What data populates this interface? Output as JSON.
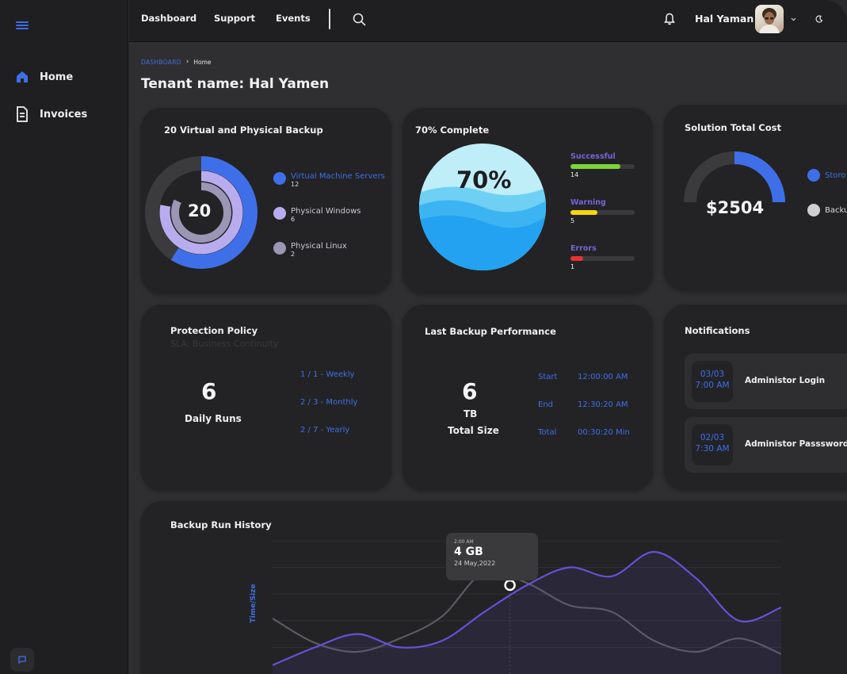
{
  "sidebar": {
    "menu_icon": "hamburger-icon",
    "items": [
      {
        "label": "Home",
        "icon": "home-icon"
      },
      {
        "label": "Invoices",
        "icon": "document-icon"
      }
    ],
    "chat_icon": "chat-icon"
  },
  "topbar": {
    "nav": [
      "Dashboard",
      "Support",
      "Events"
    ],
    "search_icon": "search-icon",
    "bell_icon": "bell-icon",
    "user_name": "Hal Yaman",
    "theme_icon": "moon-icon"
  },
  "breadcrumb": {
    "parent": "DASHBOARD",
    "current": "Home"
  },
  "page_title": "Tenant name: Hal Yamen",
  "backup_card": {
    "title": "20 Virtual and Physical Backup",
    "center_value": "20",
    "legend": [
      {
        "label": "Virtual Machine Servers",
        "value": "12",
        "color": "#3f6fe8"
      },
      {
        "label": "Physical Windows",
        "value": "6",
        "color": "#b9acee"
      },
      {
        "label": "Physical Linux",
        "value": "2",
        "color": "#9a96b4"
      }
    ]
  },
  "complete_card": {
    "title": "70% Complete",
    "percent_label": "70%",
    "percent": 70,
    "bars": [
      {
        "label": "Successful",
        "value": "14",
        "fraction": 0.78,
        "color": "#7fd33a"
      },
      {
        "label": "Warning",
        "value": "5",
        "fraction": 0.42,
        "color": "#f5d615"
      },
      {
        "label": "Errors",
        "value": "1",
        "fraction": 0.2,
        "color": "#e8322f"
      }
    ]
  },
  "cost_card": {
    "title": "Solution Total Cost",
    "amount": "$2504",
    "gauge_fraction": 0.5,
    "legend": [
      {
        "label": "Storo",
        "color": "#3f6fe8"
      },
      {
        "label": "Backu",
        "color": "#d0d0d0"
      }
    ]
  },
  "policy_card": {
    "title": "Protection Policy",
    "subtitle": "SLA: Business Continuity",
    "runs": "6",
    "runs_label": "Daily Runs",
    "schedules": [
      "1 / 1 - Weekly",
      "2 / 3 - Monthly",
      "2 / 7 - Yearly"
    ]
  },
  "performance_card": {
    "title": "Last Backup Performance",
    "size": "6",
    "unit": "TB",
    "size_label": "Total Size",
    "rows": [
      {
        "label": "Start",
        "value": "12:00:00 AM"
      },
      {
        "label": "End",
        "value": "12:30:20 AM"
      },
      {
        "label": "Total",
        "value": "00:30:20 Min"
      }
    ]
  },
  "notifications_card": {
    "title": "Notifications",
    "items": [
      {
        "date": "03/03",
        "time": "7:00 AM",
        "text": "Administor Login"
      },
      {
        "date": "02/03",
        "time": "7:30 AM",
        "text": "Administor Passsword Ch"
      }
    ]
  },
  "history_card": {
    "title": "Backup Run History",
    "ylabel": "Time/Size",
    "tooltip": {
      "time": "2:00 AM",
      "value": "4 GB",
      "date": "24 May,2022"
    }
  },
  "chart_data": {
    "type": "area",
    "title": "Backup Run History",
    "xlabel": "",
    "ylabel": "Time/Size",
    "ylim": [
      0,
      6
    ],
    "x": [
      0,
      1,
      2,
      3,
      4,
      5,
      6,
      7,
      8,
      9,
      10,
      11,
      12
    ],
    "series": [
      {
        "name": "",
        "color": "#6a4fd6",
        "values": [
          0.4,
          1.2,
          1.8,
          1.2,
          1.5,
          2.8,
          4.0,
          4.8,
          4.4,
          5.5,
          4.3,
          2.4,
          3.0
        ]
      },
      {
        "name": "",
        "color": "#5a5a60",
        "values": [
          2.5,
          1.4,
          1.0,
          1.6,
          2.6,
          4.6,
          4.1,
          3.1,
          2.8,
          1.5,
          1.0,
          1.6,
          0.9
        ]
      }
    ],
    "highlight_point": {
      "x": 5.6,
      "y": 4.0
    },
    "grid": true
  }
}
